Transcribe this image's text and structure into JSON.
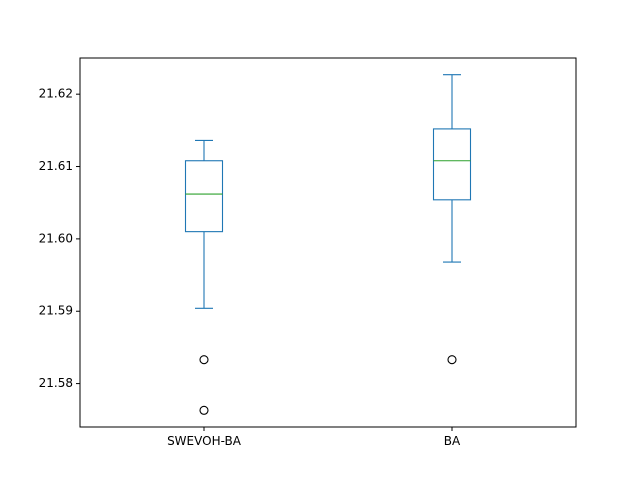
{
  "chart_data": {
    "type": "box",
    "title": "",
    "xlabel": "",
    "ylabel": "",
    "ylim": [
      21.574,
      21.625
    ],
    "y_ticks": [
      21.58,
      21.59,
      21.6,
      21.61,
      21.62
    ],
    "y_tick_labels": [
      "21.58",
      "21.59",
      "21.60",
      "21.61",
      "21.62"
    ],
    "grid": false,
    "categories": [
      "SWEVOH-BA",
      "BA"
    ],
    "series": [
      {
        "whisker_low": 21.5904,
        "q1": 21.601,
        "median": 21.6062,
        "q3": 21.6108,
        "whisker_high": 21.6136,
        "outliers": [
          21.5833,
          21.5763
        ]
      },
      {
        "whisker_low": 21.5968,
        "q1": 21.6054,
        "median": 21.6108,
        "q3": 21.6152,
        "whisker_high": 21.6227,
        "outliers": [
          21.5833
        ]
      }
    ],
    "colors": {
      "box": "#1f77b4",
      "median": "#2ca02c",
      "outlier_edge": "#000000",
      "axes": "#000000"
    }
  }
}
